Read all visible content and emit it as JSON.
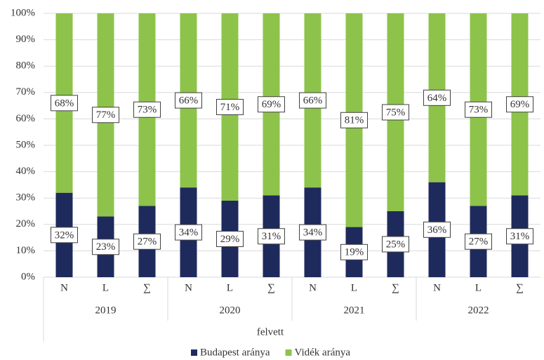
{
  "chart_data": {
    "type": "stacked_bar",
    "categories": [
      "N",
      "L",
      "∑",
      "N",
      "L",
      "∑",
      "N",
      "L",
      "∑",
      "N",
      "L",
      "∑"
    ],
    "groups": [
      "2019",
      "2020",
      "2021",
      "2022"
    ],
    "group_axis_label": "felvett",
    "series": [
      {
        "name": "Budapest aránya",
        "color": "#1f2a5c",
        "values": [
          32,
          23,
          27,
          34,
          29,
          31,
          34,
          19,
          25,
          36,
          27,
          31
        ],
        "value_labels": [
          "32%",
          "23%",
          "27%",
          "34%",
          "29%",
          "31%",
          "34%",
          "19%",
          "25%",
          "36%",
          "27%",
          "31%"
        ]
      },
      {
        "name": "Vidék aránya",
        "color": "#8dc34a",
        "values": [
          68,
          77,
          73,
          66,
          71,
          69,
          66,
          81,
          75,
          64,
          73,
          69
        ],
        "value_labels": [
          "68%",
          "77%",
          "73%",
          "66%",
          "71%",
          "69%",
          "66%",
          "81%",
          "75%",
          "64%",
          "73%",
          "69%"
        ]
      }
    ],
    "ylim": [
      0,
      100
    ],
    "yticks": [
      {
        "value": 0,
        "label": "0%"
      },
      {
        "value": 10,
        "label": "10%"
      },
      {
        "value": 20,
        "label": "20%"
      },
      {
        "value": 30,
        "label": "30%"
      },
      {
        "value": 40,
        "label": "40%"
      },
      {
        "value": 50,
        "label": "50%"
      },
      {
        "value": 60,
        "label": "60%"
      },
      {
        "value": 70,
        "label": "70%"
      },
      {
        "value": 80,
        "label": "80%"
      },
      {
        "value": 90,
        "label": "90%"
      },
      {
        "value": 100,
        "label": "100%"
      }
    ],
    "grid": true,
    "legend": "bottom"
  }
}
